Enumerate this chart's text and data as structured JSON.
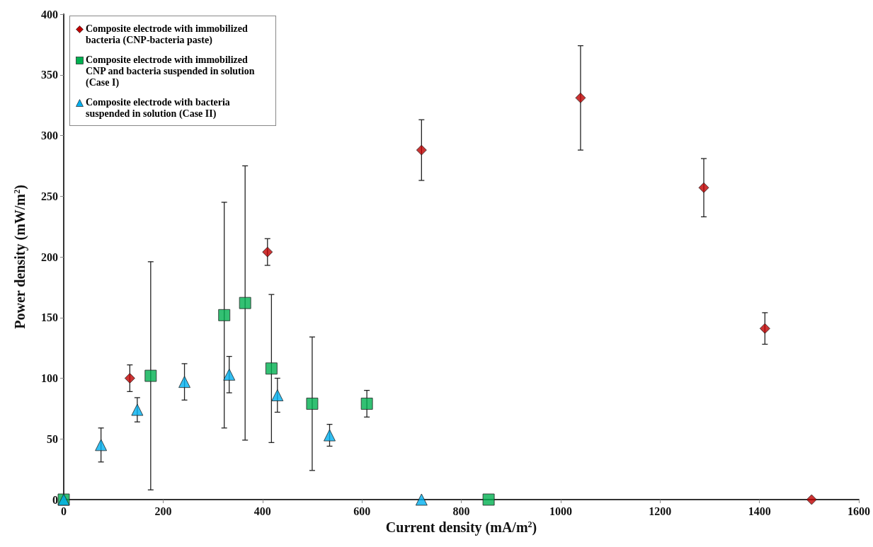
{
  "chart_data": {
    "type": "scatter",
    "xlabel": "Current density (mA/m$^{2}$)",
    "ylabel": "Power density (mW/m$^{2}$)",
    "xlim": [
      0,
      1600
    ],
    "xticks": [
      0,
      200,
      400,
      600,
      800,
      1000,
      1200,
      1400,
      1600
    ],
    "ylim": [
      0,
      400
    ],
    "yticks": [
      0,
      50,
      100,
      150,
      200,
      250,
      300,
      350,
      400
    ],
    "grid": false,
    "legend": "top left",
    "series": [
      {
        "name": "Composite electrode with immobilized bacteria (CNP-bacteria paste)",
        "color": "#c00000",
        "marker": "diamond",
        "x": [
          133,
          410,
          720,
          1040,
          1288,
          1411,
          1505
        ],
        "values": [
          100,
          204,
          288,
          331,
          257,
          141,
          0
        ],
        "errors": [
          11,
          11,
          25,
          43,
          24,
          13,
          null
        ]
      },
      {
        "name": "Composite electrode with immobilized CNP and bacteria suspended in solution (Case I)",
        "color": "#00b050",
        "marker": "square",
        "x": [
          0,
          175,
          323,
          365,
          418,
          500,
          610,
          855
        ],
        "values": [
          0,
          102,
          152,
          162,
          108,
          79,
          79,
          0
        ],
        "errors": [
          null,
          94,
          93,
          113,
          61,
          55,
          11,
          null
        ]
      },
      {
        "name": "Composite electrode with bacteria suspended in solution (Case II)",
        "color": "#00b0f0",
        "marker": "triangle",
        "x": [
          0,
          75,
          148,
          243,
          333,
          430,
          535,
          720
        ],
        "values": [
          0,
          45,
          74,
          97,
          103,
          86,
          53,
          0
        ],
        "errors": [
          null,
          14,
          10,
          15,
          15,
          14,
          9,
          null
        ]
      }
    ]
  }
}
